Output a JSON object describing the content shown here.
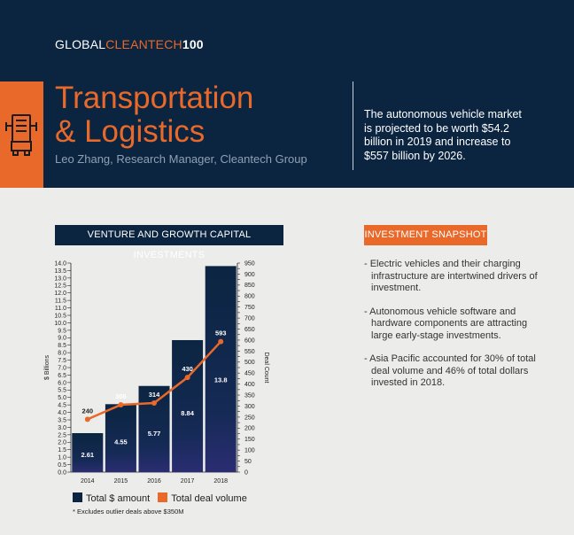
{
  "brand": {
    "part1": "GLOBAL",
    "part2": "CLEANTECH",
    "part3": "100"
  },
  "header": {
    "title_line1": "Transportation",
    "title_line2": "& Logistics",
    "byline": "Leo Zhang, Research Manager, Cleantech Group",
    "intro": "The autonomous vehicle market is projected to be worth $54.2 billion in 2019 and increase to $557 billion by 2026.",
    "icon": "truck-icon"
  },
  "chart_section": {
    "title": "VENTURE AND GROWTH CAPITAL INVESTMENTS"
  },
  "snapshot": {
    "title": "INVESTMENT SNAPSHOT",
    "items": [
      "- Electric vehicles and their charging infrastructure are intertwined drivers of investment.",
      "- Autonomous vehicle software and hardware components are attracting large early-stage investments.",
      "- Asia Pacific accounted for 30% of total deal volume and 46% of total dollars invested in 2018."
    ]
  },
  "colors": {
    "navy": "#0b2541",
    "orange": "#e8692a",
    "bar_bottom": "#2a2d72"
  },
  "chart_data": {
    "type": "bar",
    "categories": [
      "2014",
      "2015",
      "2016",
      "2017",
      "2018"
    ],
    "series": [
      {
        "name": "Total $ amount",
        "type": "bar",
        "axis": "left",
        "values": [
          2.61,
          4.55,
          5.77,
          8.84,
          13.8
        ]
      },
      {
        "name": "Total deal volume",
        "type": "line",
        "axis": "right",
        "values": [
          240,
          306,
          314,
          430,
          593
        ]
      }
    ],
    "ylabel": "$ Billions",
    "y2label": "Deal Count",
    "ylim": [
      0,
      14
    ],
    "y2lim": [
      0,
      950
    ],
    "yticks": [
      0,
      0.5,
      1.0,
      1.5,
      2.0,
      2.5,
      3.0,
      3.5,
      4.0,
      4.5,
      5.0,
      5.5,
      6.0,
      6.5,
      7.0,
      7.5,
      8.0,
      8.5,
      9.0,
      9.5,
      10.0,
      10.5,
      11.0,
      11.5,
      12.0,
      12.5,
      13.0,
      13.5,
      14.0
    ],
    "y2ticks": [
      0,
      25,
      50,
      75,
      100,
      125,
      150,
      175,
      200,
      225,
      250,
      275,
      300,
      325,
      350,
      375,
      400,
      425,
      450,
      475,
      500,
      525,
      550,
      575,
      600,
      625,
      650,
      675,
      700,
      725,
      750,
      775,
      800,
      825,
      850,
      875,
      900,
      925,
      950
    ],
    "y2tick_labels": [
      0,
      50,
      100,
      150,
      200,
      250,
      300,
      350,
      400,
      450,
      500,
      550,
      600,
      650,
      700,
      750,
      800,
      850,
      900,
      950
    ],
    "legend": "bottom",
    "grid": false,
    "footnote": "* Excludes outlier deals above $350M"
  }
}
